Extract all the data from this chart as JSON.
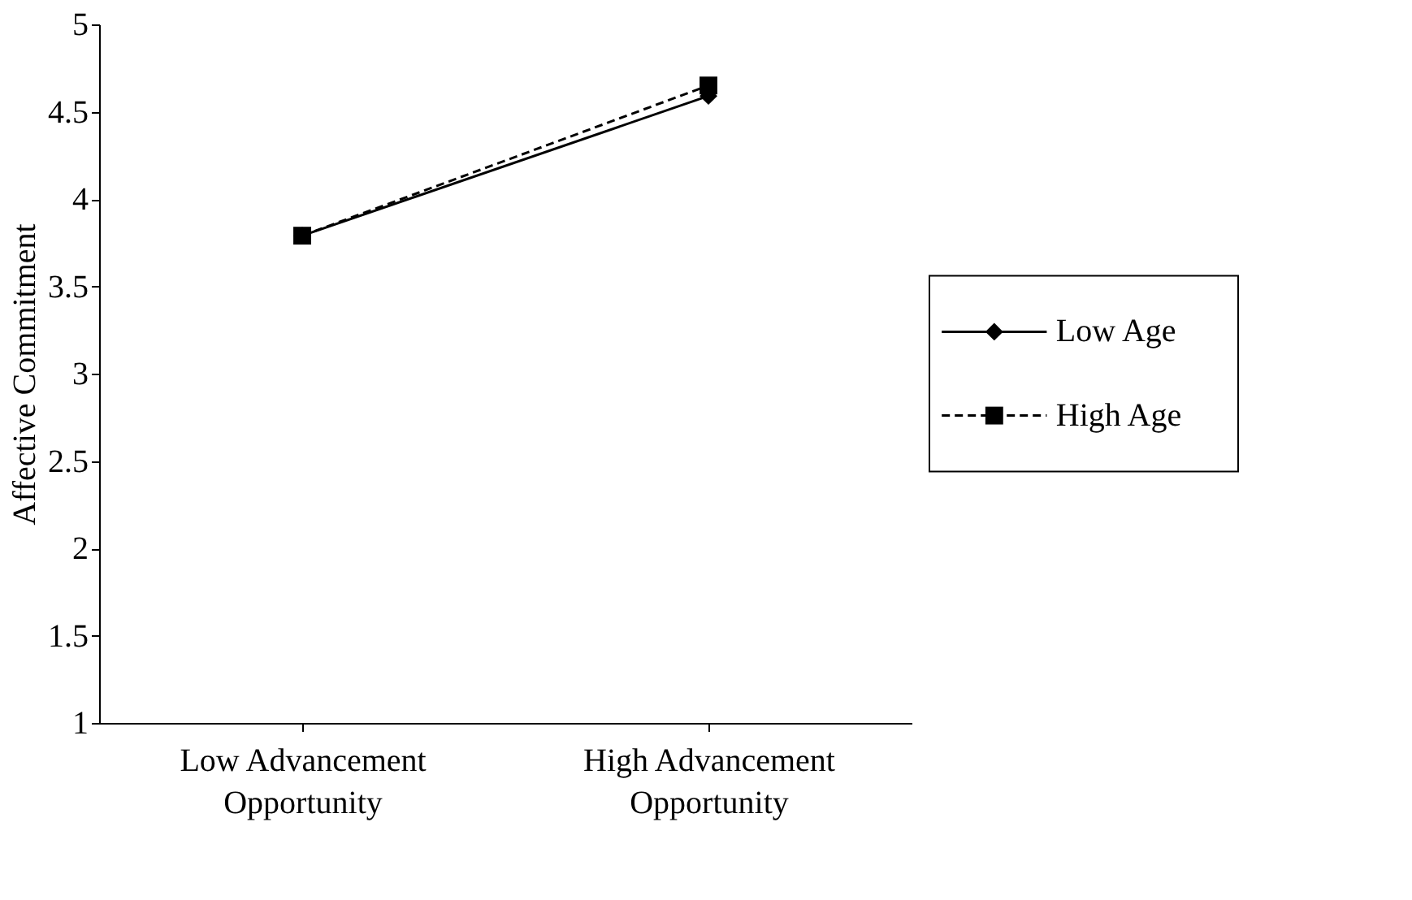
{
  "chart_data": {
    "type": "line",
    "ylabel": "Affective Commitment",
    "categories": [
      "Low Advancement Opportunity",
      "High Advancement Opportunity"
    ],
    "series": [
      {
        "name": "Low Age",
        "color": "#000000",
        "values": [
          3.79,
          4.59
        ],
        "marker": "diamond",
        "line_style": "solid"
      },
      {
        "name": "High Age",
        "color": "#000000",
        "values": [
          3.79,
          4.65
        ],
        "marker": "square",
        "line_style": "dashed"
      }
    ],
    "ylim": [
      1,
      5
    ],
    "yticks": [
      1,
      1.5,
      2,
      2.5,
      3,
      3.5,
      4,
      4.5,
      5
    ],
    "grid": false,
    "legend": "right"
  }
}
